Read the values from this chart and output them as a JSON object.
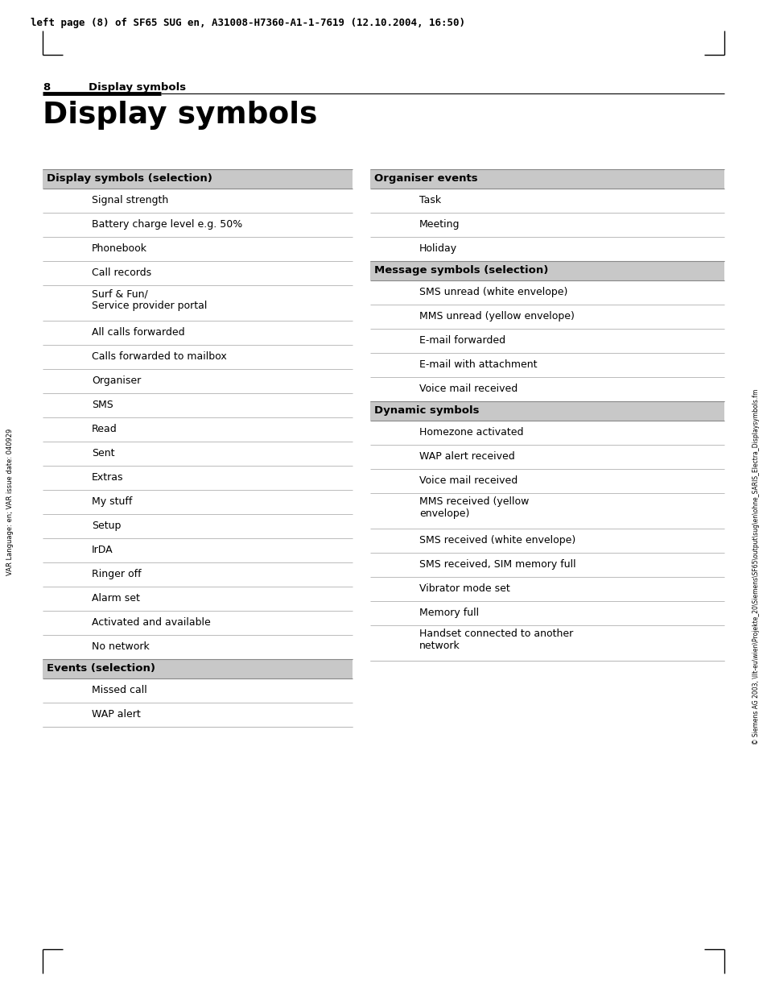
{
  "header_text": "left page (8) of SF65 SUG en, A31008-H7360-A1-1-7619 (12.10.2004, 16:50)",
  "page_number": "8",
  "page_title_section": "Display symbols",
  "main_title": "Display symbols",
  "side_text_left": "VAR Language: en; VAR issue date: 040929",
  "side_text_right": "© Siemens AG 2003, \\llt-eu\\wien\\Projekte_20\\Siemens\\SF65\\output\\sug\\en\\ohne_SARIS_Electra_Displaysymbols.fm",
  "col1_header": "Display symbols (selection)",
  "col1_items": [
    [
      "Signal strength",
      30
    ],
    [
      "Battery charge level e.g. 50%",
      30
    ],
    [
      "Phonebook",
      30
    ],
    [
      "Call records",
      30
    ],
    [
      "Surf & Fun/\nService provider portal",
      44
    ],
    [
      "All calls forwarded",
      30
    ],
    [
      "Calls forwarded to mailbox",
      30
    ],
    [
      "Organiser",
      30
    ],
    [
      "SMS",
      30
    ],
    [
      "Read",
      30
    ],
    [
      "Sent",
      30
    ],
    [
      "Extras",
      30
    ],
    [
      "My stuff",
      30
    ],
    [
      "Setup",
      30
    ],
    [
      "IrDA",
      30
    ],
    [
      "Ringer off",
      30
    ],
    [
      "Alarm set",
      30
    ],
    [
      "Activated and available",
      30
    ],
    [
      "No network",
      30
    ]
  ],
  "col1_section2_header": "Events (selection)",
  "col1_section2_items": [
    [
      "Missed call",
      30
    ],
    [
      "WAP alert",
      30
    ]
  ],
  "col2_header1": "Organiser events",
  "col2_section1_items": [
    [
      "Task",
      30
    ],
    [
      "Meeting",
      30
    ],
    [
      "Holiday",
      30
    ]
  ],
  "col2_header2": "Message symbols (selection)",
  "col2_section2_items": [
    [
      "SMS unread (white envelope)",
      30
    ],
    [
      "MMS unread (yellow envelope)",
      30
    ],
    [
      "E-mail forwarded",
      30
    ],
    [
      "E-mail with attachment",
      30
    ],
    [
      "Voice mail received",
      30
    ]
  ],
  "col2_header3": "Dynamic symbols",
  "col2_section3_items": [
    [
      "Homezone activated",
      30
    ],
    [
      "WAP alert received",
      30
    ],
    [
      "Voice mail received",
      30
    ],
    [
      "MMS received (yellow\nenvelope)",
      44
    ],
    [
      "SMS received (white envelope)",
      30
    ],
    [
      "SMS received, SIM memory full",
      30
    ],
    [
      "Vibrator mode set",
      30
    ],
    [
      "Memory full",
      30
    ],
    [
      "Handset connected to another\nnetwork",
      44
    ]
  ],
  "bg_color": "#ffffff",
  "header_bg": "#c8c8c8",
  "row_line_color": "#bbbbbb",
  "text_color": "#000000",
  "header_text_color": "#000000"
}
